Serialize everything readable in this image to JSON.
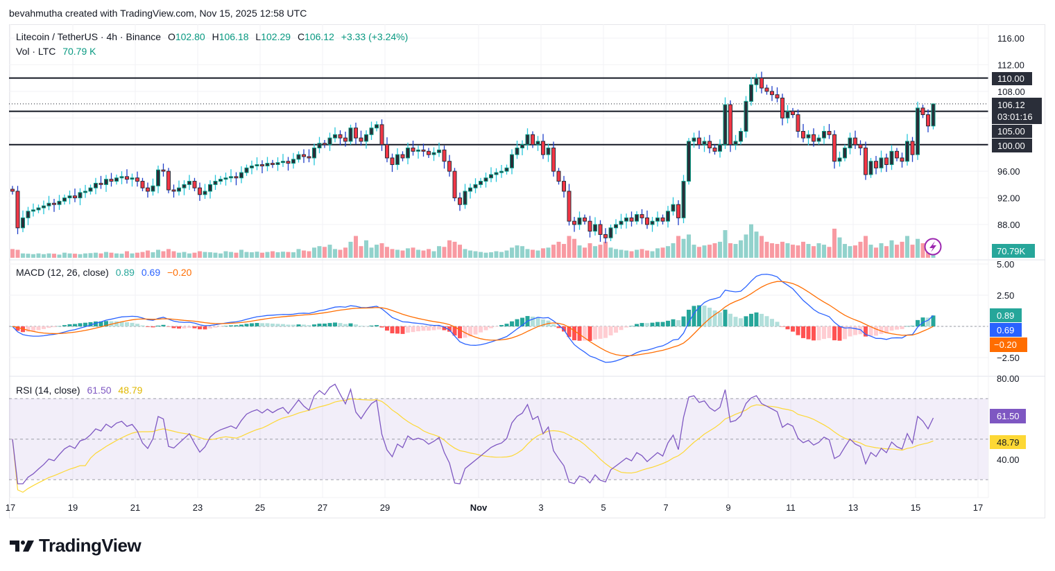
{
  "credit": "bevahmutha created with TradingView.com, Nov 15, 2025 12:58 UTC",
  "legend": {
    "symbol": "Litecoin / TetherUS · 4h · Binance",
    "o_label": "O",
    "o": "102.80",
    "h_label": "H",
    "h": "106.18",
    "l_label": "L",
    "l": "102.29",
    "c_label": "C",
    "c": "106.12",
    "change": "+3.33 (+3.24%)",
    "vol_label": "Vol · LTC",
    "vol": "70.79 K"
  },
  "macd_legend": {
    "title": "MACD (12, 26, close)",
    "hist": "0.89",
    "macd": "0.69",
    "signal": "−0.20"
  },
  "rsi_legend": {
    "title": "RSI (14, close)",
    "rsi": "61.50",
    "ma": "48.79"
  },
  "price_axis": {
    "ticks": [
      "116.00",
      "112.00",
      "108.00",
      "96.00",
      "92.00",
      "88.00"
    ],
    "levels": [
      {
        "label": "110.00",
        "value": 110
      },
      {
        "label": "105.00",
        "value": 105
      },
      {
        "label": "100.00",
        "value": 100
      }
    ],
    "last_price": "106.12",
    "countdown": "03:01:16",
    "volume_label": "70.79K"
  },
  "macd_axis": {
    "ticks": [
      "5.00",
      "2.50",
      "−2.50"
    ],
    "hist_label": "0.89",
    "macd_label": "0.69",
    "signal_label": "−0.20"
  },
  "rsi_axis": {
    "ticks": [
      "80.00",
      "40.00"
    ],
    "rsi_label": "61.50",
    "ma_label": "48.79"
  },
  "time_axis": [
    {
      "label": "17",
      "day": 0
    },
    {
      "label": "19",
      "day": 2
    },
    {
      "label": "21",
      "day": 4
    },
    {
      "label": "23",
      "day": 6
    },
    {
      "label": "25",
      "day": 8
    },
    {
      "label": "27",
      "day": 10
    },
    {
      "label": "29",
      "day": 12
    },
    {
      "label": "Nov",
      "day": 15
    },
    {
      "label": "3",
      "day": 17
    },
    {
      "label": "5",
      "day": 19
    },
    {
      "label": "7",
      "day": 21
    },
    {
      "label": "9",
      "day": 23
    },
    {
      "label": "11",
      "day": 25
    },
    {
      "label": "13",
      "day": 27
    },
    {
      "label": "15",
      "day": 29
    },
    {
      "label": "17",
      "day": 31
    }
  ],
  "logo": "TradingView",
  "colors": {
    "up": "#089981",
    "down": "#f23645",
    "up_wick": "#26c6da",
    "down_wick": "#1e3fc8",
    "macd": "#2962ff",
    "signal": "#ff6d00",
    "rsi": "#7e57c2",
    "rsi_ma": "#fdd835",
    "volume_badge": "#26a69a"
  },
  "chart_data": {
    "type": "candlestick",
    "title": "Litecoin / TetherUS · 4h · Binance",
    "interval_hours": 4,
    "start_date": "Oct 17, 2025",
    "ylim": [
      84,
      118
    ],
    "horizontal_levels": [
      110,
      105,
      100
    ],
    "close": [
      93.0,
      87.5,
      89.0,
      90.0,
      90.2,
      90.5,
      90.8,
      91.2,
      91.0,
      91.5,
      92.0,
      92.3,
      92.0,
      92.8,
      93.0,
      93.5,
      94.2,
      94.0,
      94.8,
      94.5,
      95.0,
      95.2,
      94.8,
      95.0,
      94.5,
      93.5,
      93.0,
      93.8,
      96.2,
      96.0,
      93.2,
      93.0,
      93.5,
      94.0,
      94.5,
      93.5,
      92.5,
      93.0,
      94.0,
      94.5,
      94.8,
      95.0,
      95.2,
      95.0,
      95.8,
      96.5,
      96.8,
      97.0,
      96.8,
      97.2,
      97.0,
      97.3,
      97.5,
      97.2,
      97.8,
      98.5,
      98.2,
      98.0,
      99.5,
      100.2,
      100.0,
      101.0,
      101.5,
      101.0,
      100.5,
      102.5,
      101.0,
      100.5,
      101.5,
      102.5,
      103.0,
      100.0,
      98.0,
      97.0,
      98.5,
      98.0,
      99.5,
      99.0,
      99.2,
      99.0,
      98.5,
      98.8,
      99.2,
      97.5,
      96.0,
      92.0,
      91.0,
      93.0,
      93.5,
      94.0,
      94.5,
      95.0,
      95.5,
      95.8,
      96.0,
      96.5,
      98.5,
      99.5,
      100.0,
      101.5,
      100.0,
      100.5,
      98.5,
      99.5,
      96.0,
      94.5,
      93.0,
      88.5,
      88.0,
      89.0,
      88.5,
      87.0,
      88.0,
      86.5,
      86.0,
      87.5,
      88.0,
      88.5,
      89.0,
      88.5,
      89.5,
      89.0,
      88.0,
      88.5,
      89.0,
      88.5,
      90.0,
      91.0,
      89.0,
      94.5,
      100.5,
      101.0,
      100.0,
      100.5,
      99.5,
      99.0,
      100.0,
      106.0,
      100.0,
      100.5,
      102.0,
      106.5,
      109.0,
      110.0,
      108.5,
      108.0,
      107.5,
      107.0,
      104.0,
      105.0,
      104.5,
      102.0,
      101.0,
      101.5,
      100.5,
      101.0,
      102.0,
      101.5,
      97.5,
      98.0,
      99.5,
      101.0,
      100.0,
      99.5,
      95.5,
      97.5,
      96.5,
      98.0,
      97.0,
      99.0,
      98.0,
      97.5,
      100.5,
      98.5,
      105.5,
      104.5,
      102.8,
      106.12
    ],
    "volume_k": [
      60,
      55,
      30,
      28,
      25,
      30,
      25,
      30,
      28,
      22,
      35,
      30,
      28,
      25,
      30,
      32,
      35,
      30,
      40,
      35,
      30,
      28,
      45,
      30,
      35,
      40,
      50,
      38,
      55,
      45,
      60,
      45,
      35,
      40,
      30,
      35,
      45,
      40,
      38,
      35,
      30,
      45,
      40,
      35,
      55,
      40,
      38,
      42,
      35,
      40,
      45,
      38,
      42,
      40,
      38,
      60,
      50,
      45,
      70,
      80,
      75,
      90,
      60,
      55,
      70,
      110,
      150,
      80,
      120,
      70,
      90,
      100,
      75,
      60,
      55,
      50,
      65,
      70,
      55,
      50,
      60,
      45,
      80,
      75,
      120,
      110,
      90,
      60,
      50,
      45,
      40,
      35,
      38,
      45,
      40,
      50,
      70,
      85,
      80,
      60,
      55,
      50,
      65,
      70,
      90,
      110,
      95,
      150,
      130,
      85,
      70,
      100,
      80,
      90,
      110,
      70,
      60,
      55,
      50,
      45,
      55,
      60,
      50,
      45,
      65,
      70,
      80,
      100,
      150,
      130,
      160,
      90,
      75,
      85,
      90,
      100,
      110,
      190,
      100,
      95,
      120,
      160,
      230,
      180,
      150,
      110,
      100,
      95,
      110,
      100,
      90,
      85,
      110,
      95,
      80,
      100,
      90,
      75,
      200,
      140,
      95,
      80,
      85,
      110,
      150,
      90,
      70,
      100,
      80,
      120,
      90,
      110,
      150,
      90,
      130,
      100,
      70,
      70.79
    ],
    "last_ohlc": {
      "open": 102.8,
      "high": 106.18,
      "low": 102.29,
      "close": 106.12
    },
    "indicators": {
      "macd": {
        "fast": 12,
        "slow": 26,
        "source": "close",
        "last_hist": 0.89,
        "last_macd": 0.69,
        "last_signal": -0.2,
        "ylim": [
          -4,
          5.5
        ]
      },
      "rsi": {
        "length": 14,
        "source": "close",
        "last": 61.5,
        "ma_last": 48.79,
        "bands": [
          70,
          50,
          30
        ],
        "ylim": [
          28,
          81
        ]
      }
    }
  }
}
